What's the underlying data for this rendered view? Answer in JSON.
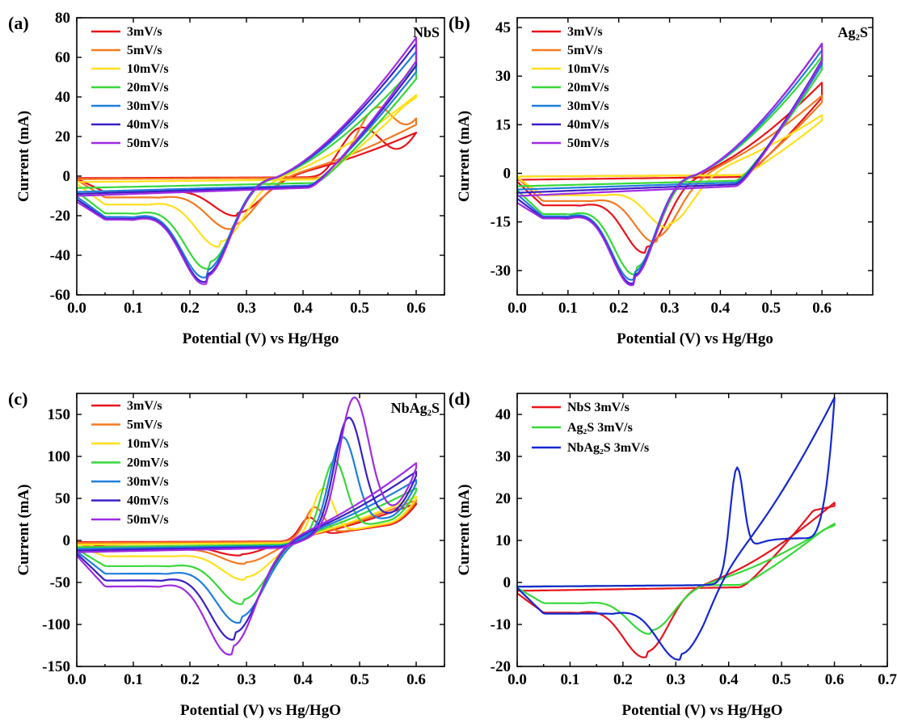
{
  "chart_data": [
    {
      "panel": "(a)",
      "type": "line",
      "sample_label": "NbS",
      "xlabel": "Potential (V) vs Hg/Hgo",
      "ylabel": "Current (mA)",
      "xlim": [
        0.0,
        0.65
      ],
      "ylim": [
        -60,
        80
      ],
      "xticks": [
        "0.0",
        "0.1",
        "0.2",
        "0.3",
        "0.4",
        "0.5",
        "0.6"
      ],
      "xtick_values": [
        0.0,
        0.1,
        0.2,
        0.3,
        0.4,
        0.5,
        0.6
      ],
      "yticks": [
        "-60",
        "-40",
        "-20",
        "0",
        "20",
        "40",
        "60",
        "80"
      ],
      "ytick_values": [
        -60,
        -40,
        -20,
        0,
        20,
        40,
        60,
        80
      ],
      "legend_position": "top-left",
      "series": [
        {
          "name": "3mV/s",
          "color": "#e8141b",
          "Emax": 0.6,
          "Ipk": 20,
          "Epk": 0.5,
          "wpk": 0.05,
          "Iend": 22,
          "Ic": -18,
          "Ec": 0.285,
          "Ival0": -1,
          "Ion": 0.43,
          "iaAtten": 0.02
        },
        {
          "name": "5mV/s",
          "color": "#f47a20",
          "Emax": 0.6,
          "Ipk": 27,
          "Epk": 0.53,
          "wpk": 0.05,
          "Iend": 26,
          "Ic": -24,
          "Ec": 0.275,
          "Ival0": -1.5,
          "Ion": 0.43,
          "iaAtten": 0.04
        },
        {
          "name": "10mV/s",
          "color": "#ffe01a",
          "Emax": 0.6,
          "Ipk": 37,
          "Epk": 0.58,
          "wpk": 0.05,
          "Iend": 41,
          "Ic": -32,
          "Ec": 0.255,
          "Ival0": -3,
          "Ion": 0.42,
          "iaAtten": 0.06
        },
        {
          "name": "20mV/s",
          "color": "#37d83a",
          "Emax": 0.6,
          "Ipk": 55,
          "Epk": 0.61,
          "wpk": 0.05,
          "Iend": 56,
          "Ic": -42,
          "Ec": 0.235,
          "Ival0": -6,
          "Ion": 0.42,
          "iaAtten": 0.08
        },
        {
          "name": "30mV/s",
          "color": "#1f7fdc",
          "Emax": 0.6,
          "Ipk": 63,
          "Epk": 0.62,
          "wpk": 0.05,
          "Iend": 63,
          "Ic": -46,
          "Ec": 0.23,
          "Ival0": -8,
          "Ion": 0.41,
          "iaAtten": 0.09
        },
        {
          "name": "40mV/s",
          "color": "#3a20c8",
          "Emax": 0.6,
          "Ipk": 67,
          "Epk": 0.62,
          "wpk": 0.05,
          "Iend": 67,
          "Ic": -48,
          "Ec": 0.23,
          "Ival0": -9,
          "Ion": 0.41,
          "iaAtten": 0.1
        },
        {
          "name": "50mV/s",
          "color": "#a02be4",
          "Emax": 0.6,
          "Ipk": 70,
          "Epk": 0.62,
          "wpk": 0.05,
          "Iend": 70,
          "Ic": -49,
          "Ec": 0.23,
          "Ival0": -10,
          "Ion": 0.41,
          "iaAtten": 0.1
        }
      ]
    },
    {
      "panel": "(b)",
      "type": "line",
      "sample_label": "Ag₂S",
      "xlabel": "Potential (V) vs Hg/Hgo",
      "ylabel": "Current (mA)",
      "xlim": [
        0.0,
        0.7
      ],
      "ylim": [
        -37.5,
        48
      ],
      "xticks": [
        "0.0",
        "0.1",
        "0.2",
        "0.3",
        "0.4",
        "0.5",
        "0.6"
      ],
      "xtick_values": [
        0.0,
        0.1,
        0.2,
        0.3,
        0.4,
        0.5,
        0.6
      ],
      "yticks": [
        "-30",
        "-15",
        "0",
        "15",
        "30",
        "45"
      ],
      "ytick_values": [
        -30,
        -15,
        0,
        15,
        30,
        45
      ],
      "legend_position": "top-left",
      "series": [
        {
          "name": "3mV/s",
          "color": "#e8141b",
          "Emax": 0.6,
          "Ipk": 26,
          "Epk": 0.61,
          "wpk": 0.05,
          "Iend": 28,
          "Ic": -22,
          "Ec": 0.255,
          "Ival0": -2,
          "Ion": 0.44,
          "iaAtten": 0.03
        },
        {
          "name": "5mV/s",
          "color": "#f47a20",
          "Emax": 0.6,
          "Ipk": 24,
          "Epk": 0.61,
          "wpk": 0.05,
          "Iend": 24,
          "Ic": -19,
          "Ec": 0.275,
          "Ival0": -1,
          "Ion": 0.44,
          "iaAtten": 0.03
        },
        {
          "name": "10mV/s",
          "color": "#ffe01a",
          "Emax": 0.6,
          "Ipk": 18,
          "Epk": 0.61,
          "wpk": 0.05,
          "Iend": 18,
          "Ic": -15,
          "Ec": 0.3,
          "Ival0": -1,
          "Ion": 0.44,
          "iaAtten": 0.03
        },
        {
          "name": "20mV/s",
          "color": "#37d83a",
          "Emax": 0.6,
          "Ipk": 36,
          "Epk": 0.61,
          "wpk": 0.05,
          "Iend": 36,
          "Ic": -28,
          "Ec": 0.235,
          "Ival0": -4,
          "Ion": 0.43,
          "iaAtten": 0.05
        },
        {
          "name": "30mV/s",
          "color": "#1f7fdc",
          "Emax": 0.6,
          "Ipk": 38,
          "Epk": 0.61,
          "wpk": 0.05,
          "Iend": 38,
          "Ic": -29.5,
          "Ec": 0.23,
          "Ival0": -5,
          "Ion": 0.43,
          "iaAtten": 0.05
        },
        {
          "name": "40mV/s",
          "color": "#3a20c8",
          "Emax": 0.6,
          "Ipk": 40,
          "Epk": 0.61,
          "wpk": 0.05,
          "Iend": 40,
          "Ic": -30.5,
          "Ec": 0.23,
          "Ival0": -6,
          "Ion": 0.43,
          "iaAtten": 0.05
        },
        {
          "name": "50mV/s",
          "color": "#a02be4",
          "Emax": 0.6,
          "Ipk": 40,
          "Epk": 0.61,
          "wpk": 0.05,
          "Iend": 40,
          "Ic": -31,
          "Ec": 0.23,
          "Ival0": -7,
          "Ion": 0.43,
          "iaAtten": 0.05
        }
      ]
    },
    {
      "panel": "(c)",
      "type": "line",
      "sample_label": "NbAg₂S",
      "xlabel": "Potential (V) vs Hg/HgO",
      "ylabel": "Current (mA)",
      "xlim": [
        0.0,
        0.65
      ],
      "ylim": [
        -150,
        175
      ],
      "xticks": [
        "0.0",
        "0.1",
        "0.2",
        "0.3",
        "0.4",
        "0.5",
        "0.6"
      ],
      "xtick_values": [
        0.0,
        0.1,
        0.2,
        0.3,
        0.4,
        0.5,
        0.6
      ],
      "yticks": [
        "-150",
        "-100",
        "-50",
        "0",
        "50",
        "100",
        "150"
      ],
      "ytick_values": [
        -150,
        -100,
        -50,
        0,
        50,
        100,
        150
      ],
      "legend_position": "top-left",
      "series": [
        {
          "name": "3mV/s",
          "color": "#e8141b",
          "Emax": 0.6,
          "Ipk": 24,
          "Epk": 0.41,
          "wpk": 0.022,
          "Iend": 44,
          "Ic": -16,
          "Ec": 0.29,
          "Ival0": -2,
          "Ion": 0.36,
          "iaAtten": 0.03
        },
        {
          "name": "5mV/s",
          "color": "#f47a20",
          "Emax": 0.6,
          "Ipk": 35,
          "Epk": 0.42,
          "wpk": 0.024,
          "Iend": 48,
          "Ic": -25,
          "Ec": 0.3,
          "Ival0": -3,
          "Ion": 0.36,
          "iaAtten": 0.04
        },
        {
          "name": "10mV/s",
          "color": "#ffe01a",
          "Emax": 0.6,
          "Ipk": 56,
          "Epk": 0.435,
          "wpk": 0.026,
          "Iend": 52,
          "Ic": -42,
          "Ec": 0.3,
          "Ival0": -5,
          "Ion": 0.36,
          "iaAtten": 0.05
        },
        {
          "name": "20mV/s",
          "color": "#37d83a",
          "Emax": 0.6,
          "Ipk": 86,
          "Epk": 0.455,
          "wpk": 0.03,
          "Iend": 62,
          "Ic": -68,
          "Ec": 0.295,
          "Ival0": -8,
          "Ion": 0.36,
          "iaAtten": 0.06
        },
        {
          "name": "30mV/s",
          "color": "#1f7fdc",
          "Emax": 0.6,
          "Ipk": 110,
          "Epk": 0.47,
          "wpk": 0.033,
          "Iend": 72,
          "Ic": -88,
          "Ec": 0.29,
          "Ival0": -10,
          "Ion": 0.36,
          "iaAtten": 0.07
        },
        {
          "name": "40mV/s",
          "color": "#3a20c8",
          "Emax": 0.6,
          "Ipk": 130,
          "Epk": 0.48,
          "wpk": 0.035,
          "Iend": 82,
          "Ic": -106,
          "Ec": 0.28,
          "Ival0": -12,
          "Ion": 0.36,
          "iaAtten": 0.08
        },
        {
          "name": "50mV/s",
          "color": "#a02be4",
          "Emax": 0.6,
          "Ipk": 150,
          "Epk": 0.49,
          "wpk": 0.037,
          "Iend": 92,
          "Ic": -122,
          "Ec": 0.275,
          "Ival0": -14,
          "Ion": 0.36,
          "iaAtten": 0.09
        }
      ]
    },
    {
      "panel": "(d)",
      "type": "line",
      "xlabel": "Potential (V) vs Hg/HgO",
      "ylabel": "Current (mA)",
      "xlim": [
        0.0,
        0.7
      ],
      "ylim": [
        -20,
        45
      ],
      "xticks": [
        "0.0",
        "0.1",
        "0.2",
        "0.3",
        "0.4",
        "0.5",
        "0.6",
        "0.7"
      ],
      "xtick_values": [
        0.0,
        0.1,
        0.2,
        0.3,
        0.4,
        0.5,
        0.6,
        0.7
      ],
      "yticks": [
        "-20",
        "-10",
        "0",
        "10",
        "20",
        "30",
        "40"
      ],
      "ytick_values": [
        -20,
        -10,
        0,
        10,
        20,
        30,
        40
      ],
      "legend_position": "top-left",
      "series": [
        {
          "name": "NbS 3mV/s",
          "color": "#e8141b",
          "Emax": 0.6,
          "Ipk": 18,
          "Epk": 0.56,
          "wpk": 0.05,
          "Iend": 19,
          "Ic": -16,
          "Ec": 0.245,
          "Ival0": -2,
          "Ion": 0.42,
          "iaAtten": 0.02
        },
        {
          "name": "Ag₂S 3mV/s",
          "color": "#37d83a",
          "Emax": 0.6,
          "Ipk": 13,
          "Epk": 0.58,
          "wpk": 0.05,
          "Iend": 14,
          "Ic": -11,
          "Ec": 0.255,
          "Ival0": -1,
          "Ion": 0.42,
          "iaAtten": 0.02
        },
        {
          "name": "NbAg₂S 3mV/s",
          "color": "#1428d0",
          "Emax": 0.6,
          "Ipk": 23,
          "Epk": 0.415,
          "wpk": 0.018,
          "Iend": 44,
          "Ic": -16.5,
          "Ec": 0.31,
          "Ival0": -1,
          "Ion": 0.39,
          "iaAtten": 0.02,
          "sharpTail": true
        }
      ]
    }
  ],
  "legend_texts": {
    "a": [
      "3mV/s",
      "5mV/s",
      "10mV/s",
      "20mV/s",
      "30mV/s",
      "40mV/s",
      "50mV/s"
    ],
    "b": [
      "3mV/s",
      "5mV/s",
      "10mV/s",
      "20mV/s",
      "30mV/s",
      "40mV/s",
      "50mV/s"
    ],
    "c": [
      "3mV/s",
      "5mV/s",
      "10mV/s",
      "20mV/s",
      "30mV/s",
      "40mV/s",
      "50mV/s"
    ],
    "d": [
      "NbS 3mV/s",
      "Ag₂S 3mV/s",
      "NbAg₂S 3mV/s"
    ]
  }
}
